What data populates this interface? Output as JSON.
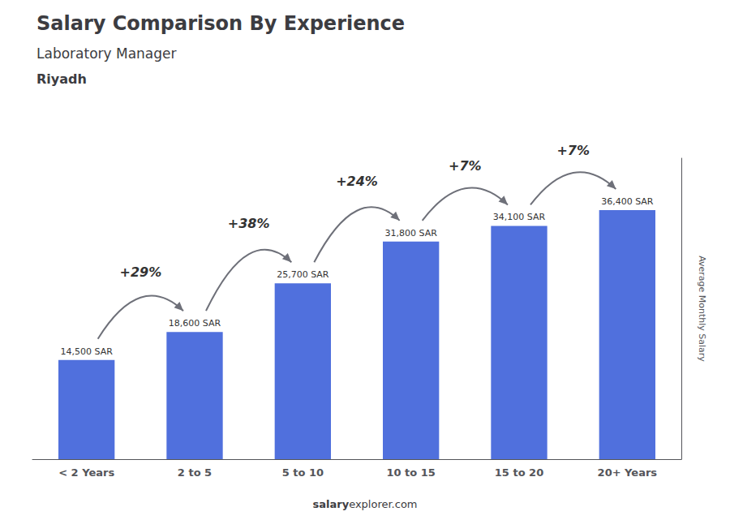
{
  "chart_data": {
    "type": "bar",
    "title": "Salary Comparison By Experience",
    "subtitle": [
      "Laboratory Manager",
      "Riyadh"
    ],
    "categories": [
      "< 2 Years",
      "2 to 5",
      "5 to 10",
      "10 to 15",
      "15 to 20",
      "20+ Years"
    ],
    "values": [
      14500,
      18600,
      25700,
      31800,
      34100,
      36400
    ],
    "value_labels": [
      "14,500 SAR",
      "18,600 SAR",
      "25,700 SAR",
      "31,800 SAR",
      "34,100 SAR",
      "36,400 SAR"
    ],
    "data_labels": true,
    "annotations": [
      null,
      "+29%",
      "+38%",
      "+24%",
      "+7%",
      "+7%"
    ],
    "footer": [
      "salary",
      "explorer.com"
    ],
    "ylabel": "Average Monthly Salary",
    "ylim": [
      0,
      44000
    ],
    "tick_labels": "x",
    "grid": false
  }
}
